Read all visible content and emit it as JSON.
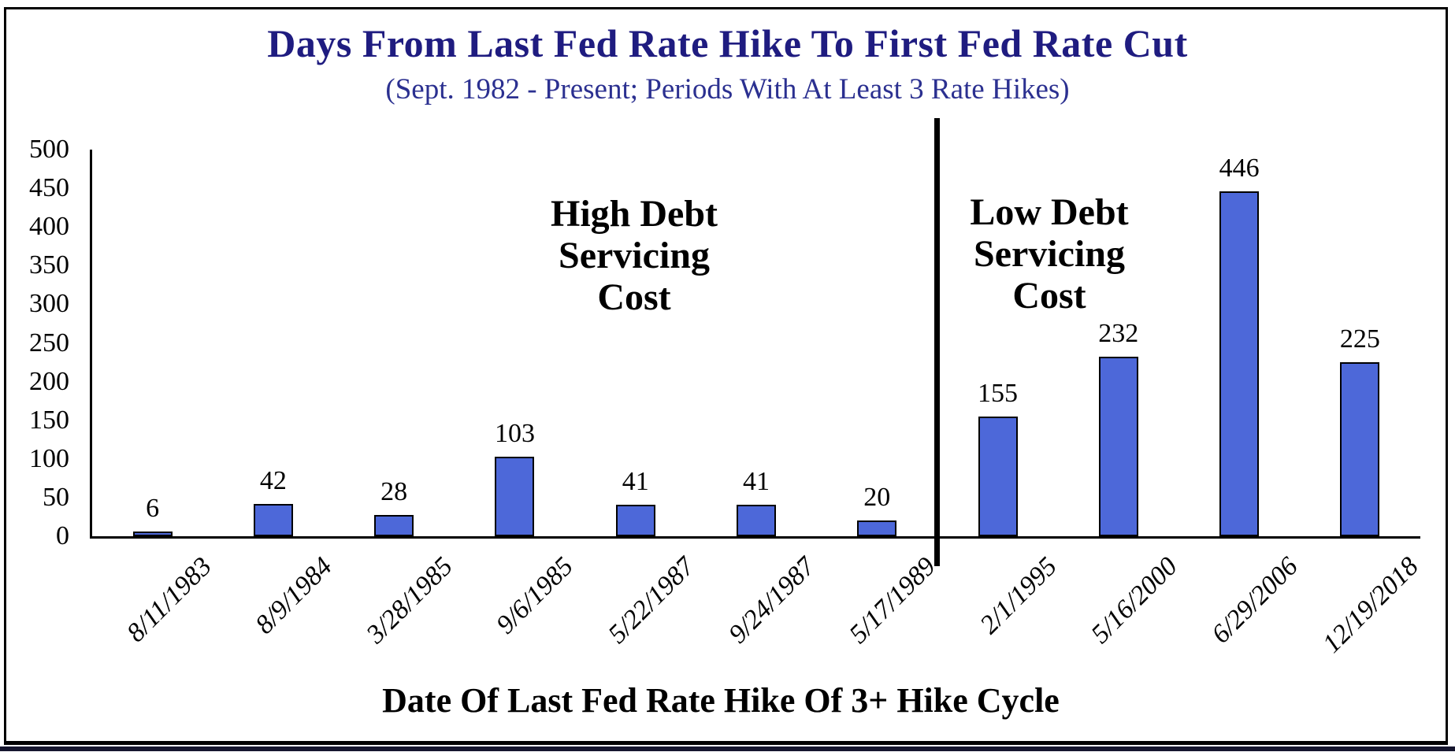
{
  "page": {
    "title": "Days From Last Fed Rate Hike To First Fed Rate Cut",
    "subtitle": "(Sept. 1982 - Present; Periods With At Least 3 Rate Hikes)"
  },
  "colors": {
    "title": "#1F1C80",
    "subtitle": "#2B3090",
    "bar_fill": "#4D68D9",
    "bar_border": "#000000",
    "axis": "#000000",
    "divider": "#000000"
  },
  "chart_data": {
    "type": "bar",
    "title": "Days From Last Fed Rate Hike To First Fed Rate Cut",
    "subtitle": "(Sept. 1982 - Present; Periods With At Least 3 Rate Hikes)",
    "categories": [
      "8/11/1983",
      "8/9/1984",
      "3/28/1985",
      "9/6/1985",
      "5/22/1987",
      "9/24/1987",
      "5/17/1989",
      "2/1/1995",
      "5/16/2000",
      "6/29/2006",
      "12/19/2018"
    ],
    "values": [
      6,
      42,
      28,
      103,
      41,
      41,
      20,
      155,
      232,
      446,
      225
    ],
    "data_labels": [
      "6",
      "42",
      "28",
      "103",
      "41",
      "41",
      "20",
      "155",
      "232",
      "446",
      "225"
    ],
    "xlabel": "Date Of Last Fed Rate Hike Of 3+ Hike Cycle",
    "ylabel": "",
    "ylim": [
      0,
      500
    ],
    "yticks": [
      0,
      50,
      100,
      150,
      200,
      250,
      300,
      350,
      400,
      450,
      500
    ],
    "grid": false,
    "legend": "none",
    "bar_color": "#4D68D9",
    "divider_after_index": 6,
    "annotations": [
      {
        "side": "left-of-divider",
        "text": "High Debt\nServicing\nCost"
      },
      {
        "side": "right-of-divider",
        "text": "Low Debt\nServicing\nCost"
      }
    ]
  }
}
